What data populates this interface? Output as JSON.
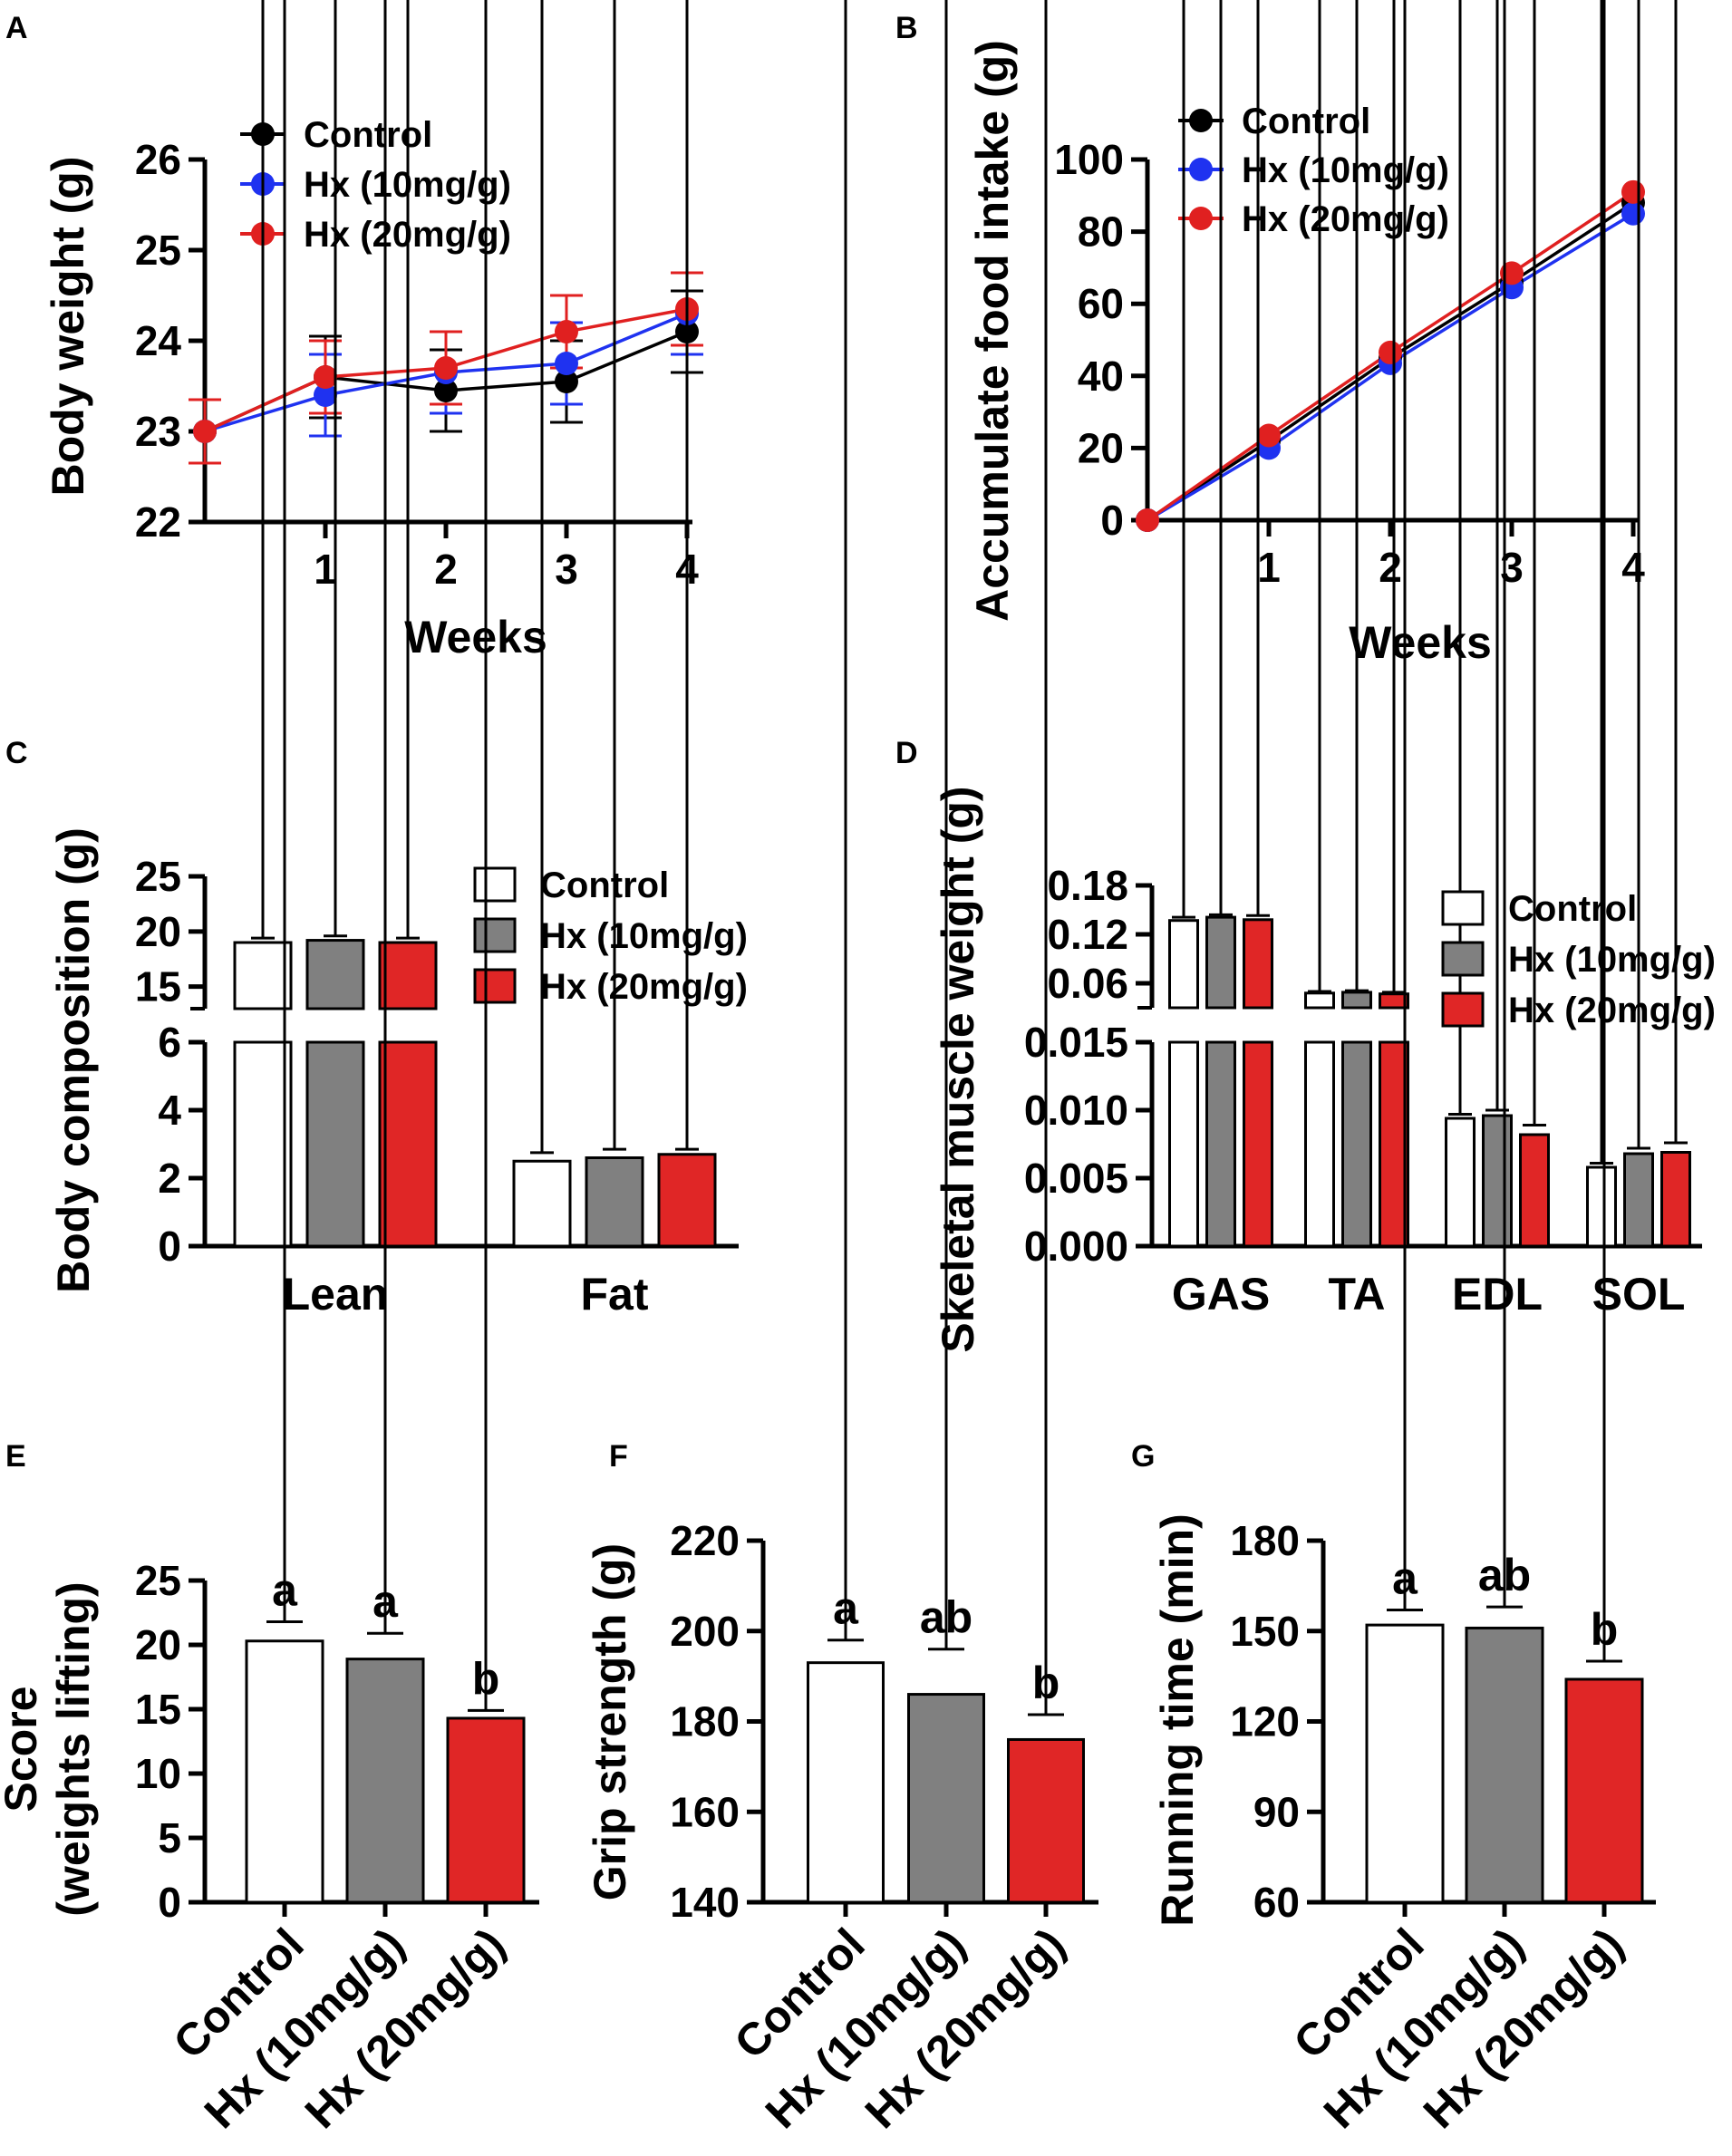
{
  "colors": {
    "control": "#000000",
    "hx10": "#1f32f0",
    "hx20": "#e02020",
    "bar_control": "#ffffff",
    "bar_hx10": "#808080",
    "bar_hx20": "#e02626"
  },
  "chart_data": [
    {
      "id": "A",
      "label": "A",
      "type": "line",
      "xlabel": "Weeks",
      "ylabel": "Body weight (g)",
      "x": [
        0,
        1,
        2,
        3,
        4
      ],
      "xticks": [
        "1",
        "2",
        "3",
        "4"
      ],
      "ylim": [
        22,
        26
      ],
      "yticks": [
        "22",
        "23",
        "24",
        "25",
        "26"
      ],
      "legend": [
        "Control",
        "Hx (10mg/g)",
        "Hx (20mg/g)"
      ],
      "series": [
        {
          "name": "Control",
          "values": [
            23.0,
            23.6,
            23.45,
            23.55,
            24.1
          ],
          "errors": [
            0.35,
            0.45,
            0.45,
            0.45,
            0.45
          ]
        },
        {
          "name": "Hx (10mg/g)",
          "values": [
            23.0,
            23.4,
            23.65,
            23.75,
            24.3
          ],
          "errors": [
            0.35,
            0.45,
            0.45,
            0.45,
            0.45
          ]
        },
        {
          "name": "Hx (20mg/g)",
          "values": [
            23.0,
            23.6,
            23.7,
            24.1,
            24.35
          ],
          "errors": [
            0.35,
            0.4,
            0.4,
            0.4,
            0.4
          ]
        }
      ]
    },
    {
      "id": "B",
      "label": "B",
      "type": "line",
      "xlabel": "Weeks",
      "ylabel": "Accumulate food intake (g)",
      "x": [
        0,
        1,
        2,
        3,
        4
      ],
      "xticks": [
        "1",
        "2",
        "3",
        "4"
      ],
      "ylim": [
        0,
        100
      ],
      "yticks": [
        "0",
        "20",
        "40",
        "60",
        "80",
        "100"
      ],
      "legend": [
        "Control",
        "Hx (10mg/g)",
        "Hx (20mg/g)"
      ],
      "series": [
        {
          "name": "Control",
          "values": [
            0,
            22,
            45,
            66,
            88
          ]
        },
        {
          "name": "Hx (10mg/g)",
          "values": [
            0,
            20,
            43.5,
            64.5,
            85
          ]
        },
        {
          "name": "Hx (20mg/g)",
          "values": [
            0,
            23.5,
            46.5,
            68.5,
            91
          ]
        }
      ]
    },
    {
      "id": "C",
      "label": "C",
      "type": "bar",
      "xlabel": "",
      "ylabel": "Body composition (g)",
      "categories": [
        "Lean",
        "Fat"
      ],
      "ylim_lower": [
        0,
        6
      ],
      "yticks_lower": [
        "0",
        "2",
        "4",
        "6"
      ],
      "ylim_upper": [
        13,
        25
      ],
      "yticks_upper": [
        "15",
        "20",
        "25"
      ],
      "legend": [
        "Control",
        "Hx (10mg/g)",
        "Hx (20mg/g)"
      ],
      "series": [
        {
          "name": "Control",
          "values": [
            19.0,
            2.5
          ],
          "errors": [
            0.4,
            0.25
          ]
        },
        {
          "name": "Hx (10mg/g)",
          "values": [
            19.2,
            2.6
          ],
          "errors": [
            0.4,
            0.25
          ]
        },
        {
          "name": "Hx (20mg/g)",
          "values": [
            19.0,
            2.7
          ],
          "errors": [
            0.4,
            0.15
          ]
        }
      ]
    },
    {
      "id": "D",
      "label": "D",
      "type": "bar",
      "xlabel": "",
      "ylabel": "Skeletal muscle weight (g)",
      "categories": [
        "GAS",
        "TA",
        "EDL",
        "SOL"
      ],
      "ylim_lower": [
        0,
        0.015
      ],
      "yticks_lower": [
        "0.000",
        "0.005",
        "0.010",
        "0.015"
      ],
      "ylim_upper": [
        0.03,
        0.18
      ],
      "yticks_upper": [
        "0.06",
        "0.12",
        "0.18"
      ],
      "legend": [
        "Control",
        "Hx (10mg/g)",
        "Hx (20mg/g)"
      ],
      "series": [
        {
          "name": "Control",
          "values": [
            0.137,
            0.048,
            0.0094,
            0.0058
          ],
          "errors": [
            0.004,
            0.002,
            0.0003,
            0.0003
          ]
        },
        {
          "name": "Hx (10mg/g)",
          "values": [
            0.141,
            0.049,
            0.0096,
            0.0068
          ],
          "errors": [
            0.003,
            0.002,
            0.0004,
            0.0004
          ]
        },
        {
          "name": "Hx (20mg/g)",
          "values": [
            0.138,
            0.047,
            0.0082,
            0.0069
          ],
          "errors": [
            0.005,
            0.002,
            0.0007,
            0.0007
          ]
        }
      ]
    },
    {
      "id": "E",
      "label": "E",
      "type": "bar",
      "xlabel": "",
      "ylabel": "Score",
      "ylabel2": "(weights lifting)",
      "categories": [
        "Control",
        "Hx (10mg/g)",
        "Hx (20mg/g)"
      ],
      "ylim": [
        0,
        25
      ],
      "yticks": [
        "0",
        "5",
        "10",
        "15",
        "20",
        "25"
      ],
      "values": [
        20.3,
        18.9,
        14.3
      ],
      "errors": [
        1.5,
        2.0,
        0.6
      ],
      "annotations": [
        "a",
        "a",
        "b"
      ]
    },
    {
      "id": "F",
      "label": "F",
      "type": "bar",
      "xlabel": "",
      "ylabel": "Grip strength (g)",
      "categories": [
        "Control",
        "Hx (10mg/g)",
        "Hx (20mg/g)"
      ],
      "ylim": [
        140,
        220
      ],
      "yticks": [
        "140",
        "160",
        "180",
        "200",
        "220"
      ],
      "values": [
        193,
        186,
        176
      ],
      "errors": [
        5,
        10,
        5.5
      ],
      "annotations": [
        "a",
        "ab",
        "b"
      ]
    },
    {
      "id": "G",
      "label": "G",
      "type": "bar",
      "xlabel": "",
      "ylabel": "Running time (min)",
      "categories": [
        "Control",
        "Hx (10mg/g)",
        "Hx (20mg/g)"
      ],
      "ylim": [
        60,
        180
      ],
      "yticks": [
        "60",
        "90",
        "120",
        "150",
        "180"
      ],
      "values": [
        152,
        151,
        134
      ],
      "errors": [
        5,
        7,
        6
      ],
      "annotations": [
        "a",
        "ab",
        "b"
      ]
    }
  ]
}
